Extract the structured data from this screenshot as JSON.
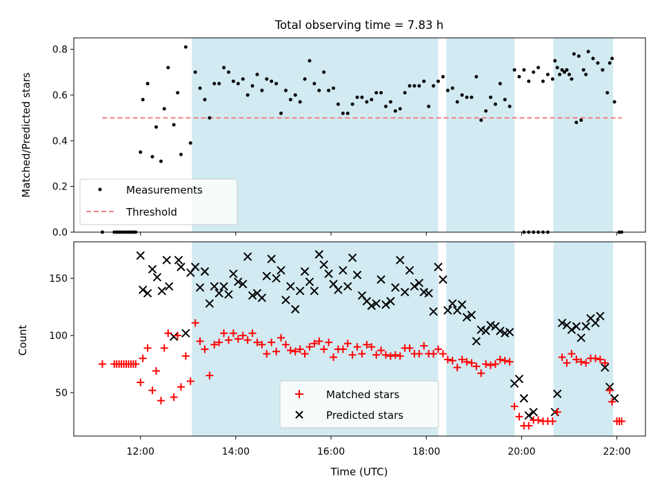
{
  "chart_data": {
    "type": "scatter",
    "title": "Total observing time = 7.83 h",
    "xlabel": "Time (UTC)",
    "xlim_hours": [
      10.6,
      22.6
    ],
    "xticks": [
      {
        "h": 12,
        "label": "12:00"
      },
      {
        "h": 14,
        "label": "14:00"
      },
      {
        "h": 16,
        "label": "16:00"
      },
      {
        "h": 18,
        "label": "18:00"
      },
      {
        "h": 20,
        "label": "20:00"
      },
      {
        "h": 22,
        "label": "22:00"
      }
    ],
    "observing_spans_hours": [
      [
        13.08,
        18.25
      ],
      [
        18.42,
        19.85
      ],
      [
        20.67,
        21.92
      ]
    ],
    "colors": {
      "span": "#add8e6",
      "threshold": "#f08080",
      "matched": "#ff0000",
      "predicted": "#000000",
      "measurements": "#000000"
    },
    "top": {
      "ylabel": "Matched/Predicted stars",
      "ylim": [
        0,
        0.85
      ],
      "yticks": [
        {
          "v": 0,
          "label": "0.0"
        },
        {
          "v": 0.2,
          "label": "0.2"
        },
        {
          "v": 0.4,
          "label": "0.4"
        },
        {
          "v": 0.6,
          "label": "0.6"
        },
        {
          "v": 0.8,
          "label": "0.8"
        }
      ],
      "threshold": {
        "value": 0.5,
        "x_range": [
          11.2,
          22.1
        ]
      },
      "legend": [
        "Measurements",
        "Threshold"
      ],
      "legend_loc": "lower-left",
      "measurements": [
        [
          11.2,
          0
        ],
        [
          11.45,
          0
        ],
        [
          11.5,
          0
        ],
        [
          11.55,
          0
        ],
        [
          11.6,
          0
        ],
        [
          11.65,
          0
        ],
        [
          11.7,
          0
        ],
        [
          11.75,
          0
        ],
        [
          11.8,
          0
        ],
        [
          11.85,
          0
        ],
        [
          11.9,
          0
        ],
        [
          12.0,
          0.35
        ],
        [
          12.05,
          0.58
        ],
        [
          12.15,
          0.65
        ],
        [
          12.25,
          0.33
        ],
        [
          12.33,
          0.46
        ],
        [
          12.43,
          0.31
        ],
        [
          12.5,
          0.54
        ],
        [
          12.58,
          0.72
        ],
        [
          12.7,
          0.47
        ],
        [
          12.78,
          0.61
        ],
        [
          12.85,
          0.34
        ],
        [
          12.95,
          0.81
        ],
        [
          13.05,
          0.39
        ],
        [
          13.15,
          0.7
        ],
        [
          13.25,
          0.63
        ],
        [
          13.35,
          0.58
        ],
        [
          13.45,
          0.5
        ],
        [
          13.55,
          0.65
        ],
        [
          13.65,
          0.65
        ],
        [
          13.75,
          0.72
        ],
        [
          13.85,
          0.7
        ],
        [
          13.95,
          0.66
        ],
        [
          14.05,
          0.65
        ],
        [
          14.15,
          0.67
        ],
        [
          14.25,
          0.6
        ],
        [
          14.35,
          0.64
        ],
        [
          14.45,
          0.69
        ],
        [
          14.55,
          0.62
        ],
        [
          14.65,
          0.67
        ],
        [
          14.75,
          0.66
        ],
        [
          14.85,
          0.65
        ],
        [
          14.95,
          0.52
        ],
        [
          15.05,
          0.62
        ],
        [
          15.15,
          0.58
        ],
        [
          15.25,
          0.6
        ],
        [
          15.35,
          0.57
        ],
        [
          15.45,
          0.67
        ],
        [
          15.55,
          0.75
        ],
        [
          15.65,
          0.65
        ],
        [
          15.75,
          0.62
        ],
        [
          15.85,
          0.7
        ],
        [
          15.95,
          0.62
        ],
        [
          16.05,
          0.63
        ],
        [
          16.15,
          0.56
        ],
        [
          16.25,
          0.52
        ],
        [
          16.35,
          0.52
        ],
        [
          16.45,
          0.56
        ],
        [
          16.55,
          0.59
        ],
        [
          16.65,
          0.59
        ],
        [
          16.75,
          0.57
        ],
        [
          16.85,
          0.58
        ],
        [
          16.95,
          0.61
        ],
        [
          17.05,
          0.61
        ],
        [
          17.15,
          0.55
        ],
        [
          17.25,
          0.57
        ],
        [
          17.35,
          0.53
        ],
        [
          17.45,
          0.54
        ],
        [
          17.55,
          0.61
        ],
        [
          17.65,
          0.64
        ],
        [
          17.75,
          0.64
        ],
        [
          17.85,
          0.64
        ],
        [
          17.95,
          0.66
        ],
        [
          18.05,
          0.55
        ],
        [
          18.15,
          0.64
        ],
        [
          18.25,
          0.66
        ],
        [
          18.35,
          0.68
        ],
        [
          18.45,
          0.62
        ],
        [
          18.55,
          0.63
        ],
        [
          18.65,
          0.57
        ],
        [
          18.75,
          0.6
        ],
        [
          18.85,
          0.59
        ],
        [
          18.95,
          0.59
        ],
        [
          19.05,
          0.68
        ],
        [
          19.15,
          0.49
        ],
        [
          19.25,
          0.53
        ],
        [
          19.35,
          0.59
        ],
        [
          19.45,
          0.56
        ],
        [
          19.55,
          0.65
        ],
        [
          19.65,
          0.58
        ],
        [
          19.75,
          0.55
        ],
        [
          19.85,
          0.71
        ],
        [
          19.95,
          0.68
        ],
        [
          20.05,
          0.71
        ],
        [
          20.15,
          0.66
        ],
        [
          20.25,
          0.7
        ],
        [
          20.35,
          0.72
        ],
        [
          20.45,
          0.66
        ],
        [
          20.55,
          0.69
        ],
        [
          20.65,
          0.67
        ],
        [
          20.75,
          0.72
        ],
        [
          20.85,
          0.71
        ],
        [
          20.95,
          0.71
        ],
        [
          21.05,
          0.67
        ],
        [
          21.15,
          0.48
        ],
        [
          21.25,
          0.49
        ],
        [
          21.35,
          0.69
        ],
        [
          20.05,
          0
        ],
        [
          20.15,
          0
        ],
        [
          20.25,
          0
        ],
        [
          20.35,
          0
        ],
        [
          20.45,
          0
        ],
        [
          20.55,
          0
        ],
        [
          20.7,
          0.75
        ],
        [
          20.8,
          0.69
        ],
        [
          20.9,
          0.7
        ],
        [
          21.0,
          0.69
        ],
        [
          21.1,
          0.78
        ],
        [
          21.2,
          0.77
        ],
        [
          21.3,
          0.71
        ],
        [
          21.4,
          0.79
        ],
        [
          21.5,
          0.76
        ],
        [
          21.6,
          0.74
        ],
        [
          21.7,
          0.71
        ],
        [
          21.8,
          0.61
        ],
        [
          21.85,
          0.74
        ],
        [
          21.9,
          0.76
        ],
        [
          21.95,
          0.57
        ],
        [
          22.05,
          0
        ],
        [
          22.1,
          0
        ]
      ]
    },
    "bottom": {
      "ylabel": "Count",
      "ylim": [
        12,
        182
      ],
      "yticks": [
        {
          "v": 50,
          "label": "50"
        },
        {
          "v": 100,
          "label": "100"
        },
        {
          "v": 150,
          "label": "150"
        }
      ],
      "legend": [
        "Matched stars",
        "Predicted stars"
      ],
      "legend_loc": "lower-center",
      "matched": [
        [
          11.2,
          75
        ],
        [
          11.45,
          75
        ],
        [
          11.5,
          75
        ],
        [
          11.55,
          75
        ],
        [
          11.6,
          75
        ],
        [
          11.65,
          75
        ],
        [
          11.7,
          75
        ],
        [
          11.75,
          75
        ],
        [
          11.8,
          75
        ],
        [
          11.85,
          75
        ],
        [
          11.9,
          75
        ],
        [
          12.0,
          59
        ],
        [
          12.05,
          80
        ],
        [
          12.15,
          89
        ],
        [
          12.25,
          52
        ],
        [
          12.33,
          69
        ],
        [
          12.43,
          43
        ],
        [
          12.5,
          89
        ],
        [
          12.58,
          102
        ],
        [
          12.7,
          46
        ],
        [
          12.78,
          100
        ],
        [
          12.85,
          55
        ],
        [
          12.95,
          82
        ],
        [
          13.05,
          60
        ],
        [
          13.15,
          111
        ],
        [
          13.25,
          95
        ],
        [
          13.35,
          88
        ],
        [
          13.45,
          65
        ],
        [
          13.55,
          92
        ],
        [
          13.65,
          94
        ],
        [
          13.75,
          102
        ],
        [
          13.85,
          96
        ],
        [
          13.95,
          102
        ],
        [
          14.05,
          97
        ],
        [
          14.15,
          100
        ],
        [
          14.25,
          96
        ],
        [
          14.35,
          102
        ],
        [
          14.45,
          94
        ],
        [
          14.55,
          92
        ],
        [
          14.65,
          84
        ],
        [
          14.75,
          94
        ],
        [
          14.85,
          86
        ],
        [
          14.95,
          98
        ],
        [
          15.05,
          92
        ],
        [
          15.15,
          87
        ],
        [
          15.25,
          86
        ],
        [
          15.35,
          88
        ],
        [
          15.45,
          84
        ],
        [
          15.55,
          90
        ],
        [
          15.65,
          93
        ],
        [
          15.75,
          95
        ],
        [
          15.85,
          88
        ],
        [
          15.95,
          94
        ],
        [
          16.05,
          81
        ],
        [
          16.15,
          88
        ],
        [
          16.25,
          88
        ],
        [
          16.35,
          93
        ],
        [
          16.45,
          83
        ],
        [
          16.55,
          90
        ],
        [
          16.65,
          84
        ],
        [
          16.75,
          92
        ],
        [
          16.85,
          90
        ],
        [
          16.95,
          83
        ],
        [
          17.05,
          87
        ],
        [
          17.15,
          83
        ],
        [
          17.25,
          82
        ],
        [
          17.35,
          83
        ],
        [
          17.45,
          82
        ],
        [
          17.55,
          89
        ],
        [
          17.65,
          89
        ],
        [
          17.75,
          84
        ],
        [
          17.85,
          84
        ],
        [
          17.95,
          91
        ],
        [
          18.05,
          84
        ],
        [
          18.15,
          84
        ],
        [
          18.25,
          88
        ],
        [
          18.35,
          84
        ],
        [
          18.45,
          79
        ],
        [
          18.55,
          78
        ],
        [
          18.65,
          72
        ],
        [
          18.75,
          79
        ],
        [
          18.85,
          77
        ],
        [
          18.95,
          76
        ],
        [
          19.05,
          73
        ],
        [
          19.15,
          67
        ],
        [
          19.25,
          75
        ],
        [
          19.35,
          74
        ],
        [
          19.45,
          75
        ],
        [
          19.55,
          79
        ],
        [
          19.65,
          78
        ],
        [
          19.75,
          77
        ],
        [
          19.85,
          38
        ],
        [
          19.95,
          29
        ],
        [
          20.05,
          21
        ],
        [
          20.15,
          21
        ],
        [
          20.25,
          26
        ],
        [
          20.35,
          26
        ],
        [
          20.45,
          25
        ],
        [
          20.55,
          25
        ],
        [
          20.65,
          25
        ],
        [
          20.75,
          33
        ],
        [
          20.85,
          81
        ],
        [
          20.95,
          76
        ],
        [
          21.05,
          84
        ],
        [
          21.15,
          79
        ],
        [
          21.25,
          77
        ],
        [
          21.35,
          76
        ],
        [
          21.45,
          80
        ],
        [
          21.55,
          80
        ],
        [
          21.65,
          79
        ],
        [
          21.75,
          76
        ],
        [
          21.85,
          52
        ],
        [
          21.9,
          42
        ],
        [
          22.0,
          25
        ],
        [
          22.05,
          25
        ],
        [
          22.1,
          25
        ]
      ],
      "predicted": [
        [
          12.0,
          170
        ],
        [
          12.05,
          140
        ],
        [
          12.15,
          137
        ],
        [
          12.25,
          158
        ],
        [
          12.35,
          151
        ],
        [
          12.45,
          139
        ],
        [
          12.55,
          166
        ],
        [
          12.6,
          143
        ],
        [
          12.7,
          99
        ],
        [
          12.8,
          166
        ],
        [
          12.85,
          160
        ],
        [
          12.95,
          102
        ],
        [
          13.05,
          155
        ],
        [
          13.15,
          160
        ],
        [
          13.25,
          142
        ],
        [
          13.35,
          156
        ],
        [
          13.45,
          128
        ],
        [
          13.55,
          143
        ],
        [
          13.65,
          137
        ],
        [
          13.75,
          143
        ],
        [
          13.85,
          136
        ],
        [
          13.95,
          154
        ],
        [
          14.05,
          147
        ],
        [
          14.15,
          145
        ],
        [
          14.25,
          169
        ],
        [
          14.35,
          135
        ],
        [
          14.45,
          137
        ],
        [
          14.55,
          133
        ],
        [
          14.65,
          152
        ],
        [
          14.75,
          167
        ],
        [
          14.85,
          150
        ],
        [
          14.95,
          157
        ],
        [
          15.05,
          131
        ],
        [
          15.15,
          143
        ],
        [
          15.25,
          123
        ],
        [
          15.35,
          139
        ],
        [
          15.45,
          156
        ],
        [
          15.55,
          147
        ],
        [
          15.65,
          139
        ],
        [
          15.75,
          171
        ],
        [
          15.85,
          162
        ],
        [
          15.95,
          154
        ],
        [
          16.05,
          145
        ],
        [
          16.15,
          140
        ],
        [
          16.25,
          157
        ],
        [
          16.35,
          143
        ],
        [
          16.45,
          168
        ],
        [
          16.55,
          153
        ],
        [
          16.65,
          135
        ],
        [
          16.75,
          130
        ],
        [
          16.85,
          126
        ],
        [
          16.95,
          128
        ],
        [
          17.05,
          149
        ],
        [
          17.15,
          127
        ],
        [
          17.25,
          130
        ],
        [
          17.35,
          142
        ],
        [
          17.45,
          166
        ],
        [
          17.55,
          138
        ],
        [
          17.65,
          157
        ],
        [
          17.75,
          143
        ],
        [
          17.85,
          146
        ],
        [
          17.95,
          138
        ],
        [
          18.05,
          137
        ],
        [
          18.15,
          121
        ],
        [
          18.25,
          160
        ],
        [
          18.35,
          149
        ],
        [
          18.45,
          122
        ],
        [
          18.55,
          128
        ],
        [
          18.65,
          122
        ],
        [
          18.75,
          127
        ],
        [
          18.85,
          116
        ],
        [
          18.95,
          118
        ],
        [
          19.05,
          95
        ],
        [
          19.15,
          105
        ],
        [
          19.25,
          104
        ],
        [
          19.35,
          109
        ],
        [
          19.45,
          108
        ],
        [
          19.55,
          104
        ],
        [
          19.65,
          102
        ],
        [
          19.75,
          103
        ],
        [
          19.85,
          58
        ],
        [
          19.95,
          62
        ],
        [
          20.05,
          45
        ],
        [
          20.15,
          30
        ],
        [
          20.25,
          33
        ],
        [
          20.7,
          33
        ],
        [
          20.75,
          49
        ],
        [
          20.85,
          111
        ],
        [
          20.95,
          109
        ],
        [
          21.05,
          105
        ],
        [
          21.15,
          108
        ],
        [
          21.25,
          98
        ],
        [
          21.35,
          108
        ],
        [
          21.45,
          115
        ],
        [
          21.55,
          111
        ],
        [
          21.65,
          117
        ],
        [
          21.75,
          72
        ],
        [
          21.85,
          55
        ],
        [
          21.95,
          45
        ]
      ]
    }
  }
}
